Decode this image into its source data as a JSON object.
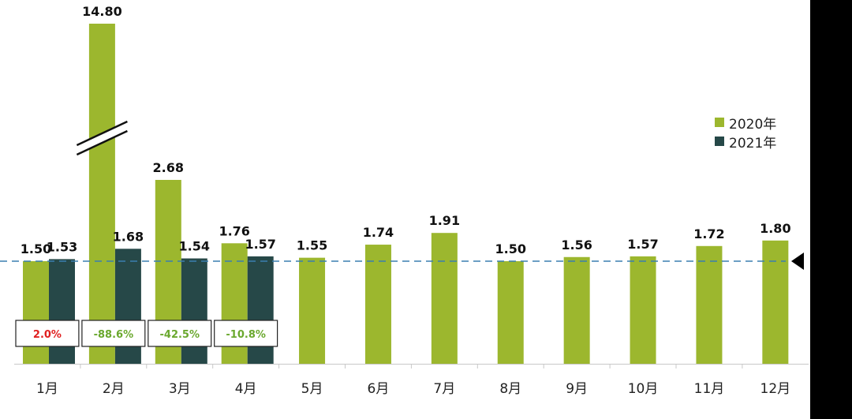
{
  "colors": {
    "series_2020": "#9cb72e",
    "series_2021": "#264848",
    "reference_line": "#3a7fb0",
    "change_positive": "#e02020",
    "change_negative": "#6aa82e"
  },
  "chart_data": {
    "type": "bar",
    "categories": [
      "1月",
      "2月",
      "3月",
      "4月",
      "5月",
      "6月",
      "7月",
      "8月",
      "9月",
      "10月",
      "11月",
      "12月"
    ],
    "series": [
      {
        "name": "2020年",
        "values": [
          1.5,
          14.8,
          2.68,
          1.76,
          1.55,
          1.74,
          1.91,
          1.5,
          1.56,
          1.57,
          1.72,
          1.8
        ]
      },
      {
        "name": "2021年",
        "values": [
          1.53,
          1.68,
          1.54,
          1.57,
          null,
          null,
          null,
          null,
          null,
          null,
          null,
          null
        ]
      }
    ],
    "data_labels": {
      "2020年": [
        "1.50",
        "14.80",
        "2.68",
        "1.76",
        "1.55",
        "1.74",
        "1.91",
        "1.50",
        "1.56",
        "1.57",
        "1.72",
        "1.80"
      ],
      "2021年": [
        "1.53",
        "1.68",
        "1.54",
        "1.57"
      ]
    },
    "yoy_change": [
      {
        "month": "1月",
        "label": "2.0%",
        "sign": "positive"
      },
      {
        "month": "2月",
        "label": "-88.6%",
        "sign": "negative"
      },
      {
        "month": "3月",
        "label": "-42.5%",
        "sign": "negative"
      },
      {
        "month": "4月",
        "label": "-10.8%",
        "sign": "negative"
      }
    ],
    "reference_value": 1.5,
    "broken_axis_category": "2月",
    "legend_position": "right",
    "grid": false,
    "title": "",
    "xlabel": "",
    "ylabel": ""
  }
}
